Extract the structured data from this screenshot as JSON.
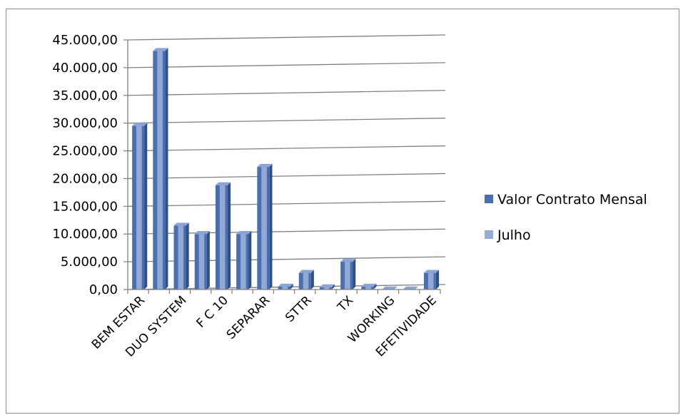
{
  "chart_data": {
    "type": "bar",
    "title": "",
    "xlabel": "",
    "ylabel": "",
    "ylim": [
      0,
      45000
    ],
    "yticks": [
      0,
      5000,
      10000,
      15000,
      20000,
      25000,
      30000,
      35000,
      40000,
      45000
    ],
    "ytick_labels": [
      "0,00",
      "5.000,00",
      "10.000,00",
      "15.000,00",
      "20.000,00",
      "25.000,00",
      "30.000,00",
      "35.000,00",
      "40.000,00",
      "45.000,00"
    ],
    "grid": true,
    "legend_position": "right",
    "categories": [
      "BEM ESTAR",
      "",
      "DUO SYSTEM",
      "",
      "F C 10",
      "",
      "SEPARAR",
      "",
      "STTR",
      "",
      "TX",
      "",
      "WORKING",
      "",
      "EFETIVIDADE"
    ],
    "series": [
      {
        "name": "Valor Contrato Mensal",
        "color": "#4a6fae",
        "values": [
          29500,
          43000,
          11500,
          10000,
          18800,
          10000,
          22100,
          500,
          3000,
          400,
          5000,
          500,
          0,
          0,
          3000
        ]
      },
      {
        "name": "Julho",
        "color": "#96acd8",
        "values": [
          null,
          null,
          null,
          null,
          null,
          null,
          null,
          null,
          null,
          null,
          null,
          null,
          null,
          null,
          null
        ]
      }
    ]
  }
}
